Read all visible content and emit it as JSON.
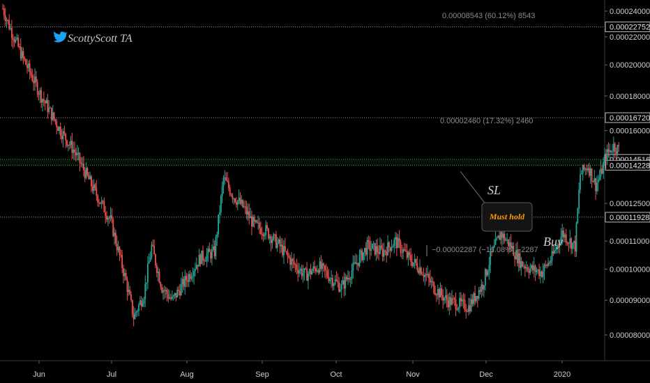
{
  "chart_data": {
    "type": "candlestick",
    "title": "",
    "watermark": "ScottyScott TA",
    "price_axis": {
      "ticks": [
        "0.00024000",
        "0.00022000",
        "0.00020000",
        "0.00018000",
        "0.00016000",
        "0.00012500",
        "0.00011000",
        "0.00010000",
        "0.00009000",
        "0.00008000"
      ],
      "ylim": [
        7.4e-05,
        0.000252
      ],
      "scale": "log"
    },
    "time_axis": {
      "ticks": [
        "Jun",
        "Jul",
        "Aug",
        "Sep",
        "Oct",
        "Nov",
        "Dec",
        "2020"
      ]
    },
    "horizontal_levels": [
      {
        "value": 0.00022752,
        "label": "0.00022752",
        "style": "dotted",
        "color": "#9a9a9a"
      },
      {
        "value": 0.0001672,
        "label": "0.00016720",
        "style": "dotted",
        "color": "#9a9a9a"
      },
      {
        "value": 0.00014516,
        "label": "0.00014516",
        "style": "dotted",
        "color": "#4caf50"
      },
      {
        "value": 0.00014228,
        "label": "0.00014228",
        "style": "dotted",
        "color": "#4caf50"
      },
      {
        "value": 0.00011928,
        "label": "0.00011928",
        "style": "dotted",
        "color": "#9a9a9a"
      }
    ],
    "measurements": [
      {
        "text": "0.00008543 (60.12%) 8543"
      },
      {
        "text": "0.00002460 (17.32%) 2460"
      },
      {
        "text": "−0.00002287 (−16.08%) −2287"
      }
    ],
    "annotations": {
      "sl": "SL",
      "must_hold": "Must hold",
      "buy": "Buy"
    },
    "candle_path": [
      [
        0,
        0.000242
      ],
      [
        6,
        0.000226
      ],
      [
        15,
        0.000206
      ],
      [
        30,
        0.00018
      ],
      [
        45,
        0.00016
      ],
      [
        56,
        0.000149
      ],
      [
        70,
        0.000132
      ],
      [
        84,
        0.000118
      ],
      [
        96,
        9.6e-05
      ],
      [
        102,
        8.5e-05
      ],
      [
        110,
        9.2e-05
      ],
      [
        116,
        0.000108
      ],
      [
        124,
        9.4e-05
      ],
      [
        132,
        9e-05
      ],
      [
        142,
        9.6e-05
      ],
      [
        154,
        0.000104
      ],
      [
        165,
        0.000106
      ],
      [
        172,
        0.000136
      ],
      [
        180,
        0.000128
      ],
      [
        188,
        0.000123
      ],
      [
        196,
        0.000116
      ],
      [
        205,
        0.000114
      ],
      [
        216,
        0.000108
      ],
      [
        226,
        0.000102
      ],
      [
        236,
        9.8e-05
      ],
      [
        246,
        0.000101
      ],
      [
        256,
        9.7e-05
      ],
      [
        264,
        9.4e-05
      ],
      [
        274,
        0.000101
      ],
      [
        284,
        0.000108
      ],
      [
        296,
        0.000106
      ],
      [
        306,
        0.00011
      ],
      [
        316,
        0.000104
      ],
      [
        326,
        0.0001
      ],
      [
        336,
        9.4e-05
      ],
      [
        346,
        9e-05
      ],
      [
        354,
        8.9e-05
      ],
      [
        363,
        8.8e-05
      ],
      [
        374,
        9.5e-05
      ],
      [
        380,
        0.000104
      ],
      [
        388,
        0.000113
      ],
      [
        396,
        0.000108
      ],
      [
        404,
        0.000102
      ],
      [
        412,
        0.0001
      ],
      [
        420,
        9.9e-05
      ],
      [
        428,
        0.000104
      ],
      [
        436,
        0.000113
      ],
      [
        446,
        0.000108
      ],
      [
        450,
        0.000138
      ],
      [
        456,
        0.000142
      ],
      [
        462,
        0.000133
      ],
      [
        466,
        0.000138
      ],
      [
        470,
        0.000147
      ],
      [
        476,
        0.000152
      ],
      [
        480,
        0.00015
      ]
    ],
    "up_color": "#26a69a",
    "down_color": "#ef5350"
  }
}
